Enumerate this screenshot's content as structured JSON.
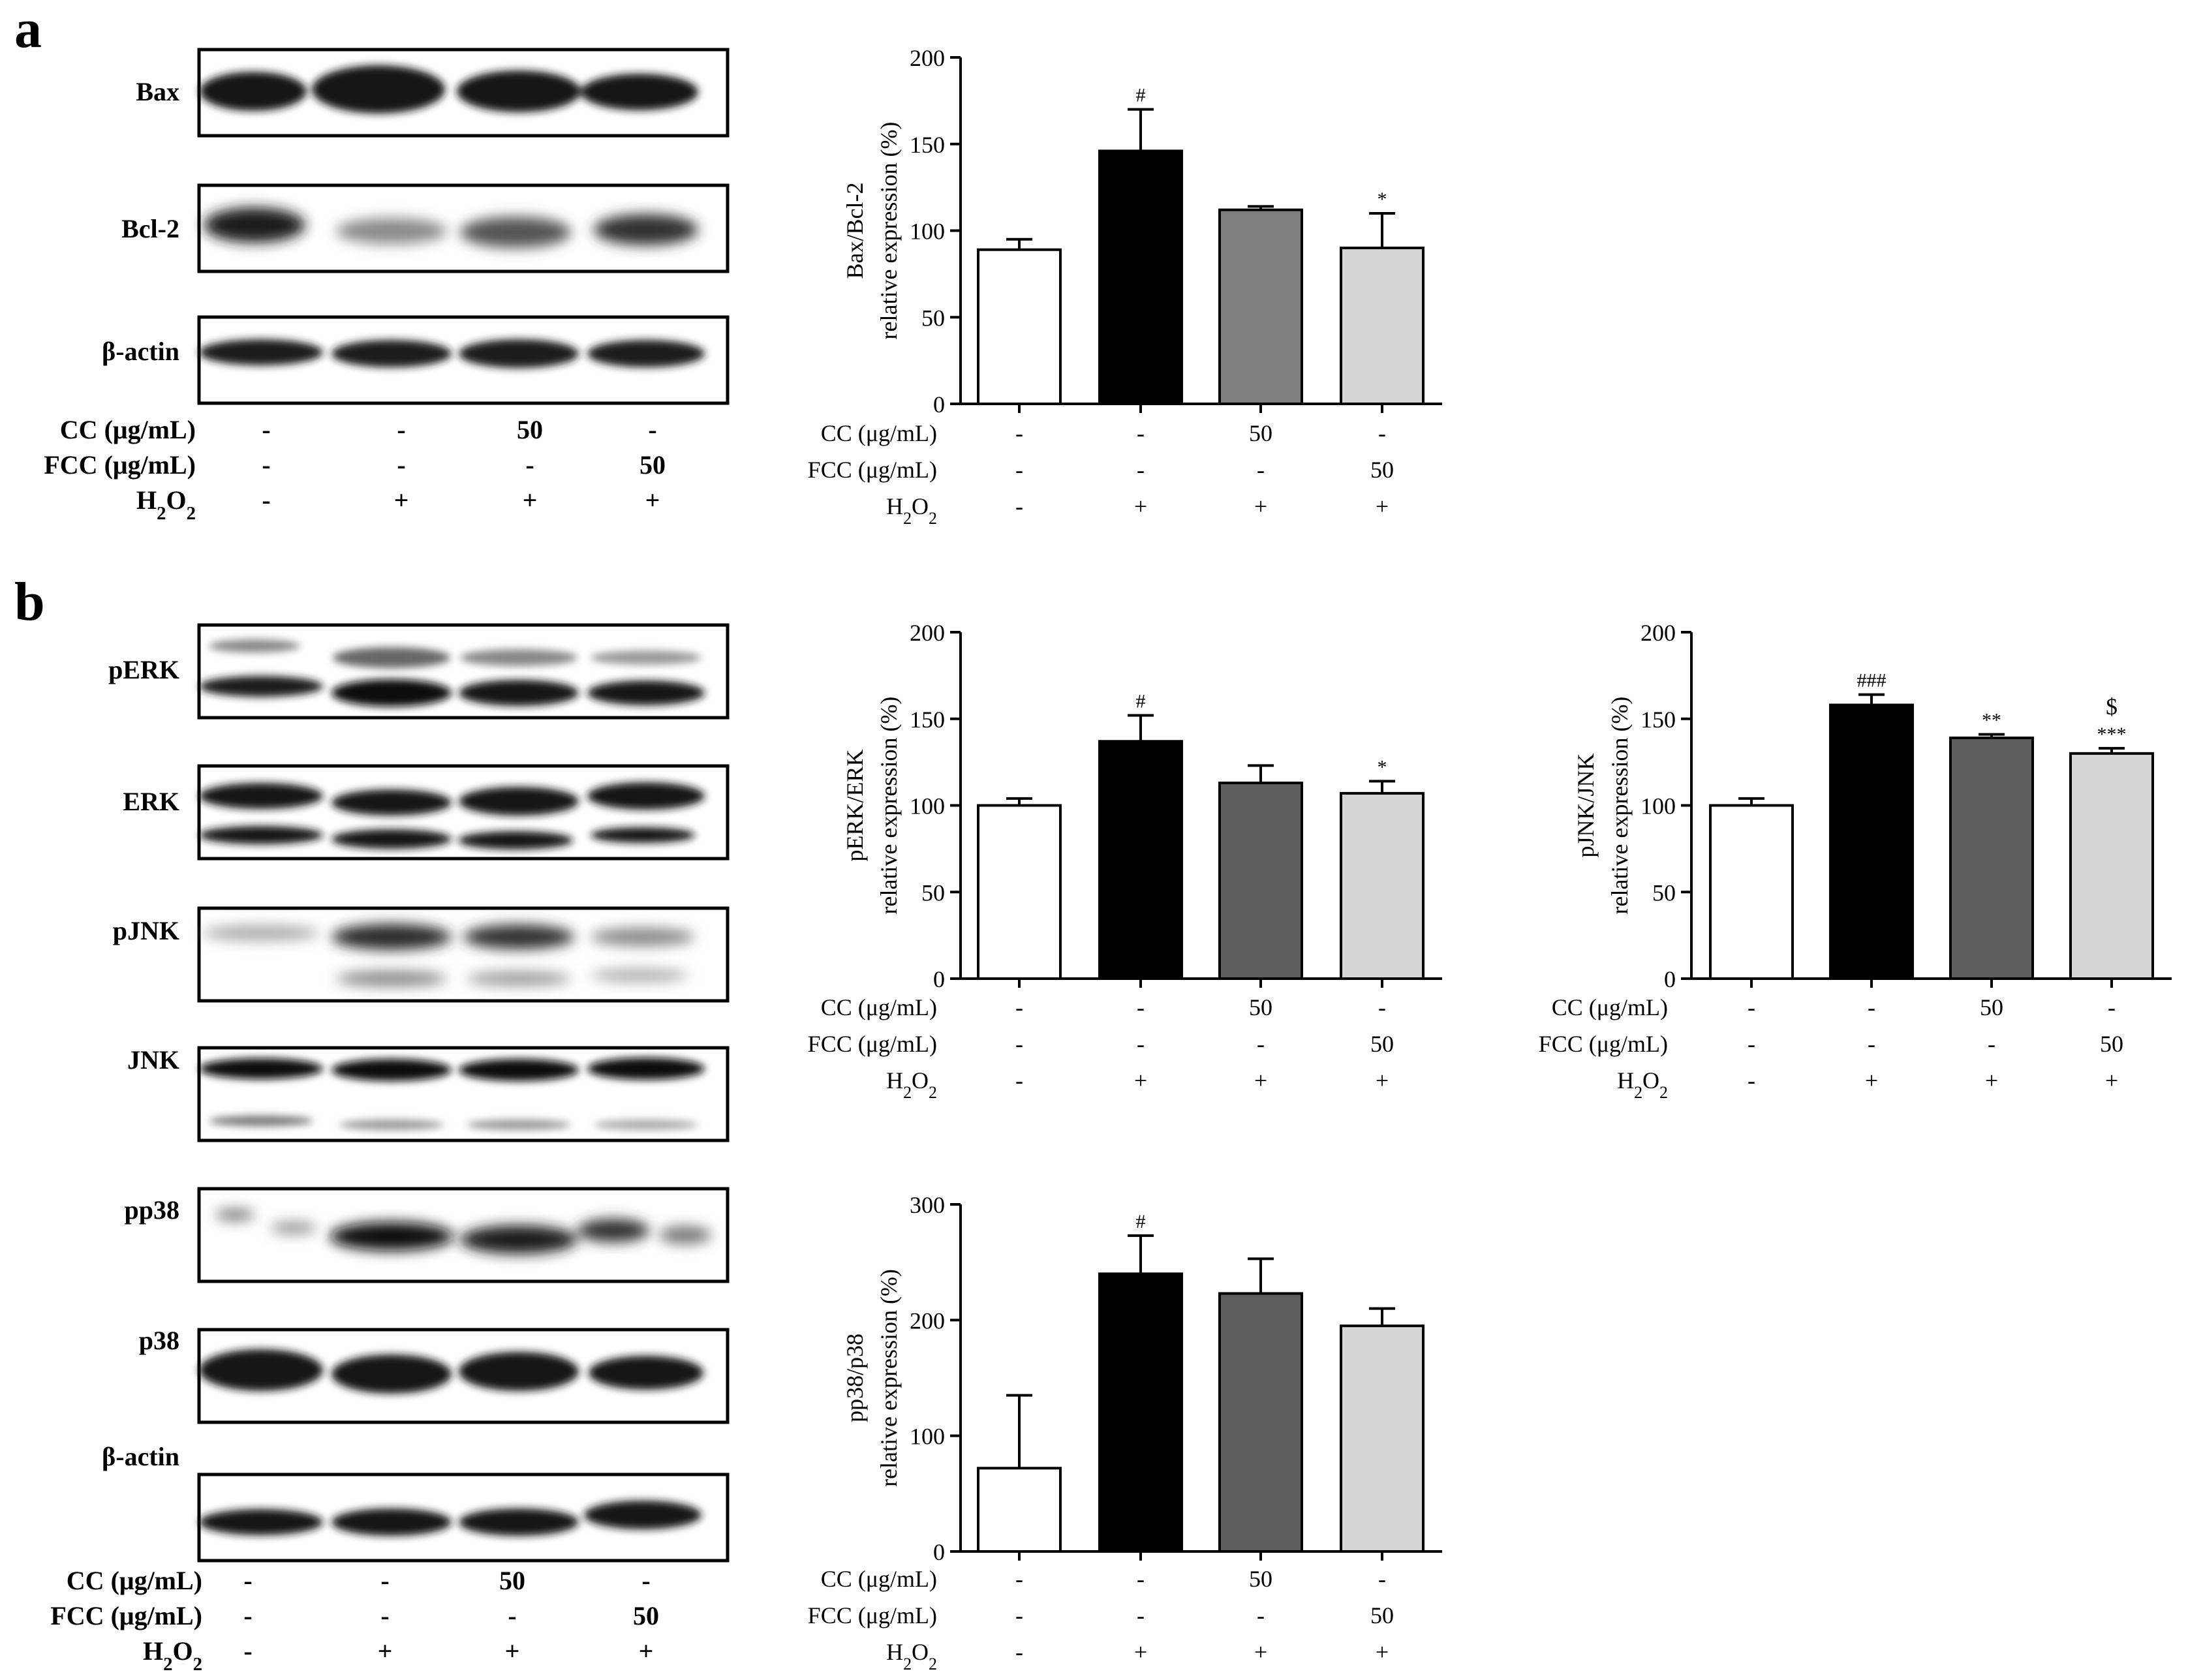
{
  "panel_labels": {
    "a": "a",
    "b": "b"
  },
  "conditions": {
    "labels": [
      "CC (μg/mL)",
      "FCC (μg/mL)",
      "H2O2"
    ],
    "values": [
      [
        "-",
        "-",
        "50",
        "-"
      ],
      [
        "-",
        "-",
        "-",
        "50"
      ],
      [
        "-",
        "+",
        "+",
        "+"
      ]
    ]
  },
  "blot_labels": {
    "a": [
      "Bax",
      "Bcl-2",
      "β-actin"
    ],
    "b": [
      "pERK",
      "ERK",
      "pJNK",
      "JNK",
      "pp38",
      "p38",
      "β-actin"
    ]
  },
  "bar_colors": [
    "#ffffff",
    "#000000",
    "#808080",
    "#d6d6d6"
  ],
  "bar_colors_dark": [
    "#ffffff",
    "#000000",
    "#5e5e5e",
    "#d6d6d6"
  ],
  "chart_data": [
    {
      "type": "bar",
      "panel": "a",
      "ylabel": [
        "Bax/Bcl-2",
        "relative expression (%)"
      ],
      "ylim": [
        0,
        200
      ],
      "yticks": [
        0,
        50,
        100,
        150,
        200
      ],
      "values": [
        89,
        146,
        112,
        90
      ],
      "errors": [
        6,
        24,
        2,
        20
      ],
      "annotations": [
        "",
        "#",
        "",
        "*"
      ]
    },
    {
      "type": "bar",
      "panel": "b",
      "ylabel": [
        "pERK/ERK",
        "relative expression (%)"
      ],
      "ylim": [
        0,
        200
      ],
      "yticks": [
        0,
        50,
        100,
        150,
        200
      ],
      "values": [
        100,
        137,
        113,
        107
      ],
      "errors": [
        4,
        15,
        10,
        7
      ],
      "annotations": [
        "",
        "#",
        "",
        "*"
      ]
    },
    {
      "type": "bar",
      "panel": "b",
      "ylabel": [
        "pJNK/JNK",
        "relative expression (%)"
      ],
      "ylim": [
        0,
        200
      ],
      "yticks": [
        0,
        50,
        100,
        150,
        200
      ],
      "values": [
        100,
        158,
        139,
        130
      ],
      "errors": [
        4,
        6,
        2,
        3
      ],
      "annotations": [
        "",
        "###",
        "**",
        "***"
      ],
      "annotations_top": [
        "",
        "",
        "",
        "$"
      ]
    },
    {
      "type": "bar",
      "panel": "b",
      "ylabel": [
        "pp38/p38",
        "relative expression (%)"
      ],
      "ylim": [
        0,
        300
      ],
      "yticks": [
        0,
        100,
        200,
        300
      ],
      "values": [
        72,
        240,
        223,
        195
      ],
      "errors": [
        63,
        33,
        30,
        15
      ],
      "annotations": [
        "",
        "#",
        "",
        ""
      ]
    }
  ]
}
